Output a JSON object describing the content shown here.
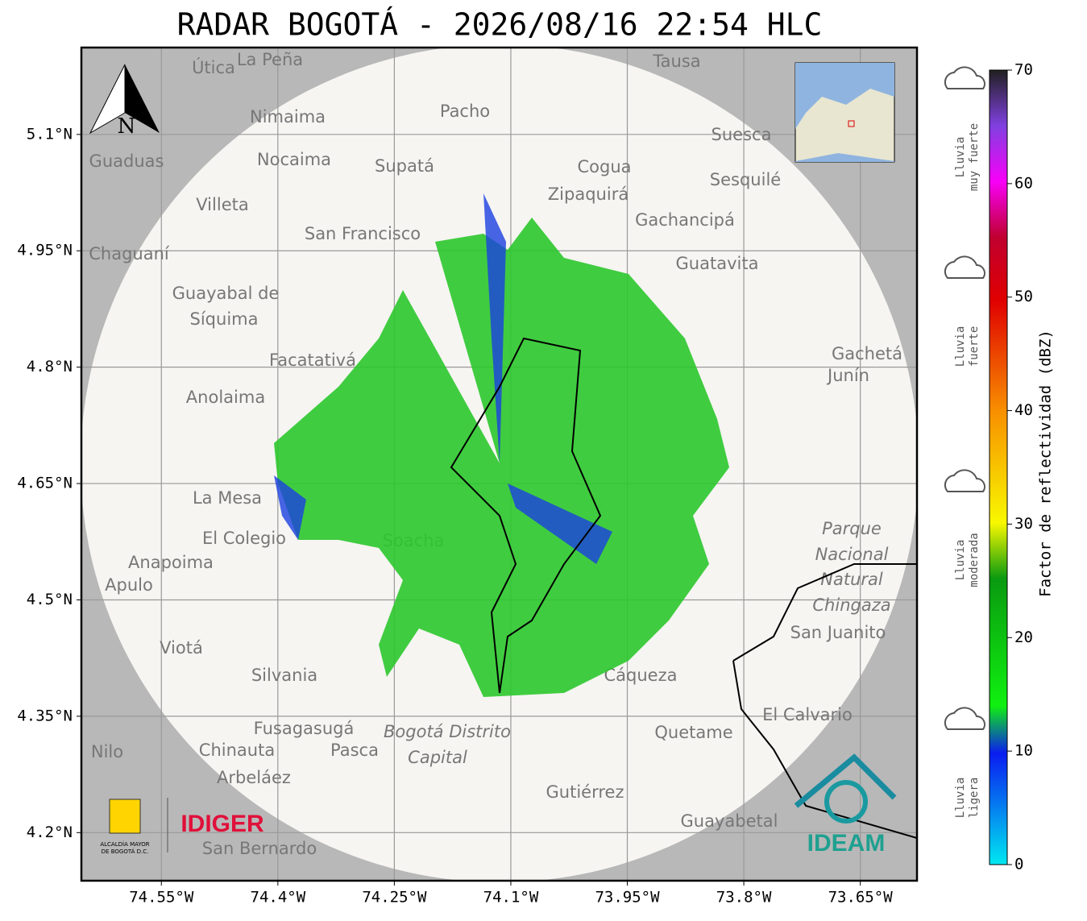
{
  "title": "RADAR BOGOTÁ - 2026/08/16 22:54 HLC",
  "map": {
    "xlim": [
      -74.653,
      -73.577
    ],
    "ylim": [
      4.138,
      5.212
    ],
    "lat_ticks": [
      {
        "value": 5.1,
        "label": "5.1°N"
      },
      {
        "value": 4.95,
        "label": "4.95°N"
      },
      {
        "value": 4.8,
        "label": "4.8°N"
      },
      {
        "value": 4.65,
        "label": "4.65°N"
      },
      {
        "value": 4.5,
        "label": "4.5°N"
      },
      {
        "value": 4.35,
        "label": "4.35°N"
      },
      {
        "value": 4.2,
        "label": "4.2°N"
      }
    ],
    "lon_ticks": [
      {
        "value": -74.55,
        "label": "74.55°W"
      },
      {
        "value": -74.4,
        "label": "74.4°W"
      },
      {
        "value": -74.25,
        "label": "74.25°W"
      },
      {
        "value": -74.1,
        "label": "74.1°W"
      },
      {
        "value": -73.95,
        "label": "73.95°W"
      },
      {
        "value": -73.8,
        "label": "73.8°W"
      },
      {
        "value": -73.65,
        "label": "73.65°W"
      }
    ],
    "north": "N",
    "places": [
      "Útica",
      "La Peña",
      "Tausa",
      "Pacho",
      "Nimaima",
      "Suesca",
      "Guaduas",
      "Nocaima",
      "Supatá",
      "Cogua",
      "Sesquilé",
      "Zipaquirá",
      "Villeta",
      "Gachancipá",
      "San Francisco",
      "Chaguaní",
      "Guatavita",
      "Guayabal de",
      "Síquima",
      "Facatativá",
      "Gachetá",
      "Junín",
      "Anolaima",
      "La Mesa",
      "El Colegio",
      "Soacha",
      "Parque",
      "Nacional",
      "Natural",
      "Chingaza",
      "Anapoima",
      "Apulo",
      "San Juanito",
      "Viotá",
      "Silvania",
      "Cáqueza",
      "El Calvario",
      "Fusagasugá",
      "Bogotá Distrito",
      "Capital",
      "Quetame",
      "Nilo",
      "Chinauta",
      "Pasca",
      "Arbeláez",
      "Gutiérrez",
      "Guayabetal",
      "San Bernardo"
    ]
  },
  "colorbar": {
    "label": "Factor de reflectividad (dBZ)",
    "ylim": [
      0,
      70
    ],
    "ticks": [
      0,
      10,
      20,
      30,
      40,
      50,
      60,
      70
    ]
  },
  "legend": [
    [
      "Lluvia",
      "muy fuerte"
    ],
    [
      "Lluvia",
      "fuerte"
    ],
    [
      "Lluvia",
      "moderada"
    ],
    [
      "Lluvia",
      "ligera"
    ]
  ],
  "logos": {
    "alcaldia": [
      "ALCALDÍA MAYOR",
      "DE BOGOTÁ D.C."
    ],
    "idiger": "IDIGER",
    "ideam": "IDEAM"
  }
}
